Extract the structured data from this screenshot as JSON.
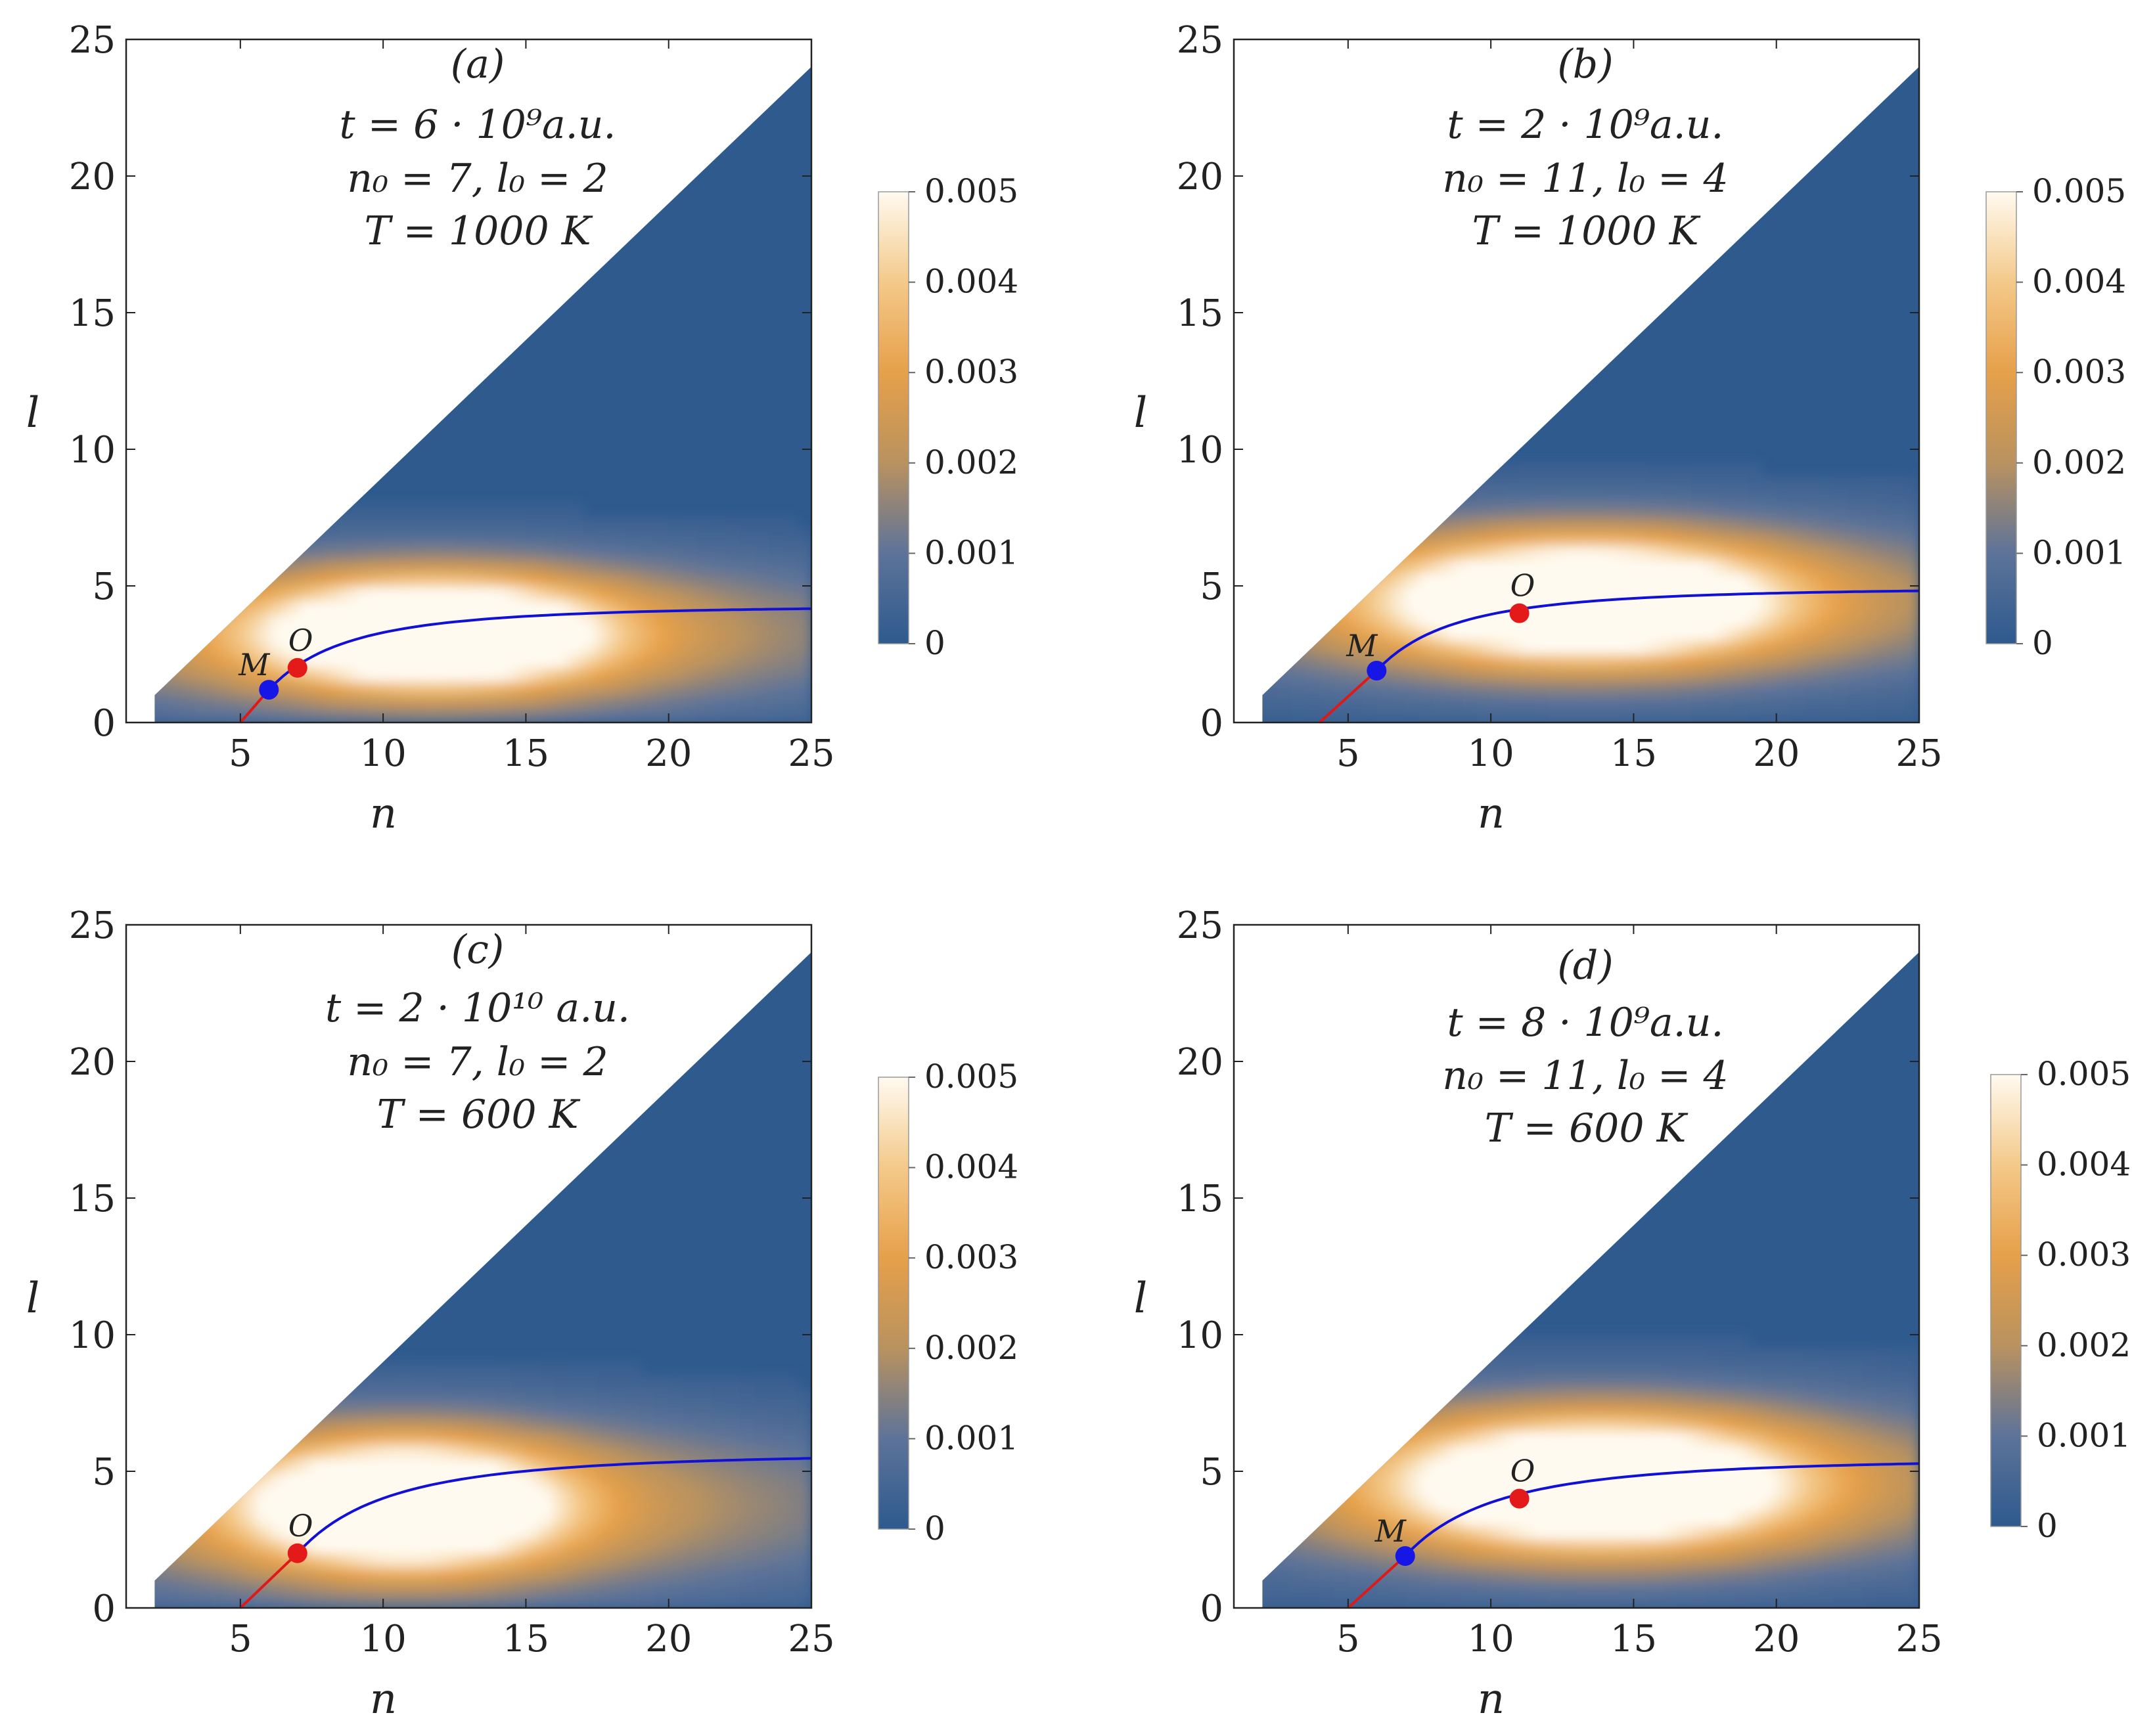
{
  "colors": {
    "background_low": "#2e5a8e",
    "mid": "#e6a04a",
    "high": "#fffaf0",
    "axis": "#222222",
    "curve_blue": "#1010d8",
    "curve_red": "#e01818",
    "point_M": "#1616e6",
    "point_O": "#e41a1a"
  },
  "colorbar": {
    "ticks": [
      "0",
      "0.001",
      "0.002",
      "0.003",
      "0.004",
      "0.005"
    ],
    "min": 0,
    "max": 0.005
  },
  "chart_data": [
    {
      "type": "heatmap",
      "panel": "(a)",
      "annotations": [
        "(a)",
        "t = 6 · 10⁹a.u.",
        "n₀ = 7, l₀ = 2",
        "T = 1000 K"
      ],
      "xlabel": "n",
      "ylabel": "l",
      "xlim": [
        1,
        25
      ],
      "ylim": [
        0,
        25
      ],
      "xticks": [
        5,
        10,
        15,
        20,
        25
      ],
      "yticks": [
        0,
        5,
        10,
        15,
        20,
        25
      ],
      "peak": {
        "n": 11.5,
        "l": 3.0,
        "spread_n": 4.0,
        "spread_l": 1.3
      },
      "points": [
        {
          "label": "M",
          "n": 6,
          "l": 1.2
        },
        {
          "label": "O",
          "n": 7,
          "l": 2
        }
      ],
      "red_line": {
        "n": [
          5,
          6
        ],
        "l": [
          0,
          1.2
        ]
      },
      "blue_curve": {
        "l_inf": 4.3,
        "n_start": 6,
        "l_start": 1.2
      }
    },
    {
      "type": "heatmap",
      "panel": "(b)",
      "annotations": [
        "(b)",
        "t = 2 · 10⁹a.u.",
        "n₀ = 11, l₀ = 4",
        "T = 1000 K"
      ],
      "xlabel": "n",
      "ylabel": "l",
      "xlim": [
        1,
        25
      ],
      "ylim": [
        0,
        25
      ],
      "xticks": [
        5,
        10,
        15,
        20,
        25
      ],
      "yticks": [
        0,
        5,
        10,
        15,
        20,
        25
      ],
      "peak": {
        "n": 13.0,
        "l": 4.2,
        "spread_n": 4.5,
        "spread_l": 1.4
      },
      "points": [
        {
          "label": "M",
          "n": 6,
          "l": 1.9
        },
        {
          "label": "O",
          "n": 11,
          "l": 4
        }
      ],
      "red_line": {
        "n": [
          4,
          6
        ],
        "l": [
          0,
          1.9
        ]
      },
      "blue_curve": {
        "l_inf": 4.95,
        "n_start": 6,
        "l_start": 1.9
      }
    },
    {
      "type": "heatmap",
      "panel": "(c)",
      "annotations": [
        "(c)",
        "t = 2 · 10¹⁰ a.u.",
        "n₀ = 7, l₀ = 2",
        "T = 600 K"
      ],
      "xlabel": "n",
      "ylabel": "l",
      "xlim": [
        1,
        25
      ],
      "ylim": [
        0,
        25
      ],
      "xticks": [
        5,
        10,
        15,
        20,
        25
      ],
      "yticks": [
        0,
        5,
        10,
        15,
        20,
        25
      ],
      "peak": {
        "n": 10.5,
        "l": 3.5,
        "spread_n": 3.6,
        "spread_l": 1.5
      },
      "points": [
        {
          "label": "O",
          "n": 7,
          "l": 2
        }
      ],
      "red_line": {
        "n": [
          5,
          7
        ],
        "l": [
          0,
          2
        ]
      },
      "blue_curve": {
        "l_inf": 5.7,
        "n_start": 7,
        "l_start": 2
      }
    },
    {
      "type": "heatmap",
      "panel": "(d)",
      "annotations": [
        "(d)",
        "t = 8 · 10⁹a.u.",
        "n₀ = 11, l₀ = 4",
        "T = 600 K"
      ],
      "xlabel": "n",
      "ylabel": "l",
      "xlim": [
        1,
        25
      ],
      "ylim": [
        0,
        25
      ],
      "xticks": [
        5,
        10,
        15,
        20,
        25
      ],
      "yticks": [
        0,
        5,
        10,
        15,
        20,
        25
      ],
      "peak": {
        "n": 13.5,
        "l": 4.3,
        "spread_n": 4.5,
        "spread_l": 1.5
      },
      "points": [
        {
          "label": "M",
          "n": 7,
          "l": 1.9
        },
        {
          "label": "O",
          "n": 11,
          "l": 4
        }
      ],
      "red_line": {
        "n": [
          5,
          7
        ],
        "l": [
          0,
          1.9
        ]
      },
      "blue_curve": {
        "l_inf": 5.5,
        "n_start": 7,
        "l_start": 1.9
      }
    }
  ]
}
